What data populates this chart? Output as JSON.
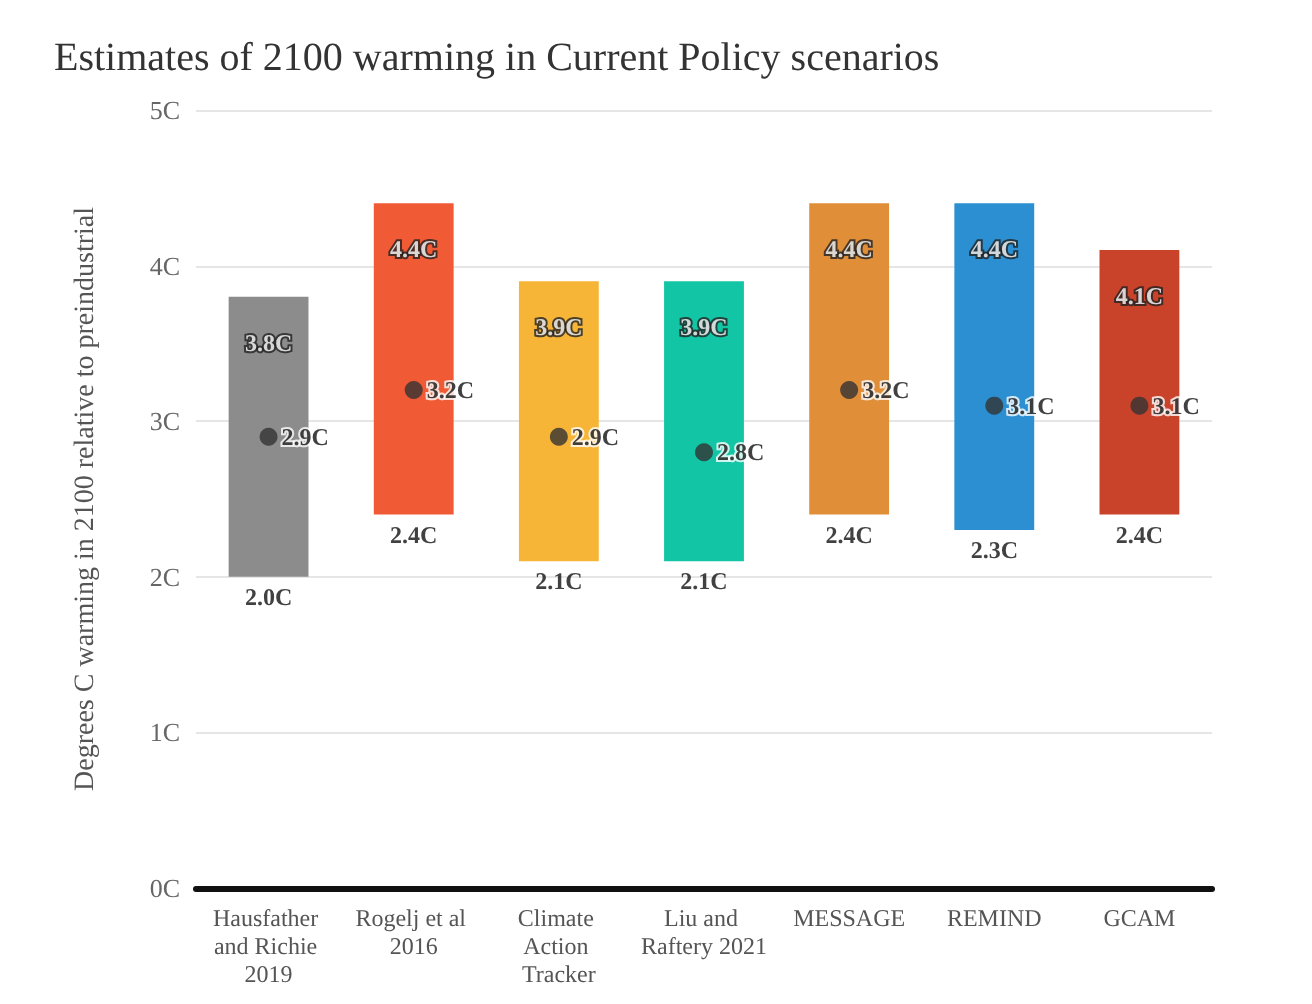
{
  "chart_data": {
    "type": "bar",
    "title": "Estimates of 2100 warming in Current Policy scenarios",
    "ylabel": "Degrees C warming in 2100 relative to preindustrial",
    "categories": [
      "Hausfather and Richie 2019",
      "Rogelj et al 2016",
      "Climate Action Tracker",
      "Liu and Raftery 2021",
      "MESSAGE",
      "REMIND",
      "GCAM"
    ],
    "series": [
      {
        "type": "bar",
        "colors": [
          "#8c8c8c",
          "#f05a35",
          "#f7b538",
          "#11c5a5",
          "#e08e38",
          "#2b8fd1",
          "#c9432a"
        ],
        "base": [
          2.0,
          2.4,
          2.1,
          2.1,
          2.4,
          2.3,
          2.4
        ],
        "values": [
          1.8,
          2.0,
          1.8,
          1.8,
          2.0,
          2.1,
          1.7
        ]
      },
      {
        "type": "scatter",
        "color": "#333333",
        "x": [
          "Hausfather and Richie 2019",
          "Rogelj et al 2016",
          "Climate Action Tracker",
          "Liu and Raftery 2021",
          "MESSAGE",
          "REMIND",
          "GCAM"
        ],
        "values": [
          2.9,
          3.2,
          2.9,
          2.8,
          3.2,
          3.1,
          3.1
        ],
        "value_labels": [
          "2.9C",
          "3.2C",
          "2.9C",
          "2.8C",
          "3.2C",
          "3.1C",
          "3.1C"
        ]
      }
    ],
    "annotations": [
      {
        "text": "3.8C",
        "x": "Hausfather and Richie 2019",
        "y": 3.8
      },
      {
        "text": "4.4C",
        "x": "Rogelj et al 2016",
        "y": 4.4
      },
      {
        "text": "3.9C",
        "x": "Climate Action Tracker",
        "y": 3.9
      },
      {
        "text": "3.9C",
        "x": "Liu and Raftery 2021",
        "y": 3.9
      },
      {
        "text": "4.4C",
        "x": "MESSAGE",
        "y": 4.4
      },
      {
        "text": "4.4C",
        "x": "REMIND",
        "y": 4.4
      },
      {
        "text": "4.1C",
        "x": "GCAM",
        "y": 4.1
      },
      {
        "text": "2.0C",
        "x": "Hausfather and Richie 2019",
        "y": 2.0
      },
      {
        "text": "2.4C",
        "x": "Rogelj et al 2016",
        "y": 2.4
      },
      {
        "text": "2.1C",
        "x": "Climate Action Tracker",
        "y": 2.1
      },
      {
        "text": "2.1C",
        "x": "Liu and Raftery 2021",
        "y": 2.1
      },
      {
        "text": "2.4C",
        "x": "MESSAGE",
        "y": 2.4
      },
      {
        "text": "2.3C",
        "x": "REMIND",
        "y": 2.3
      },
      {
        "text": "2.4C",
        "x": "GCAM",
        "y": 2.4
      }
    ],
    "ylim": [
      0,
      5
    ],
    "yticks": [
      {
        "value": 0,
        "label": "0C"
      },
      {
        "value": 1,
        "label": "1C"
      },
      {
        "value": 2,
        "label": "2C"
      },
      {
        "value": 3,
        "label": "3C"
      },
      {
        "value": 4,
        "label": "4C"
      },
      {
        "value": 5,
        "label": "5C"
      }
    ],
    "grid": "y",
    "marker": "circle"
  }
}
